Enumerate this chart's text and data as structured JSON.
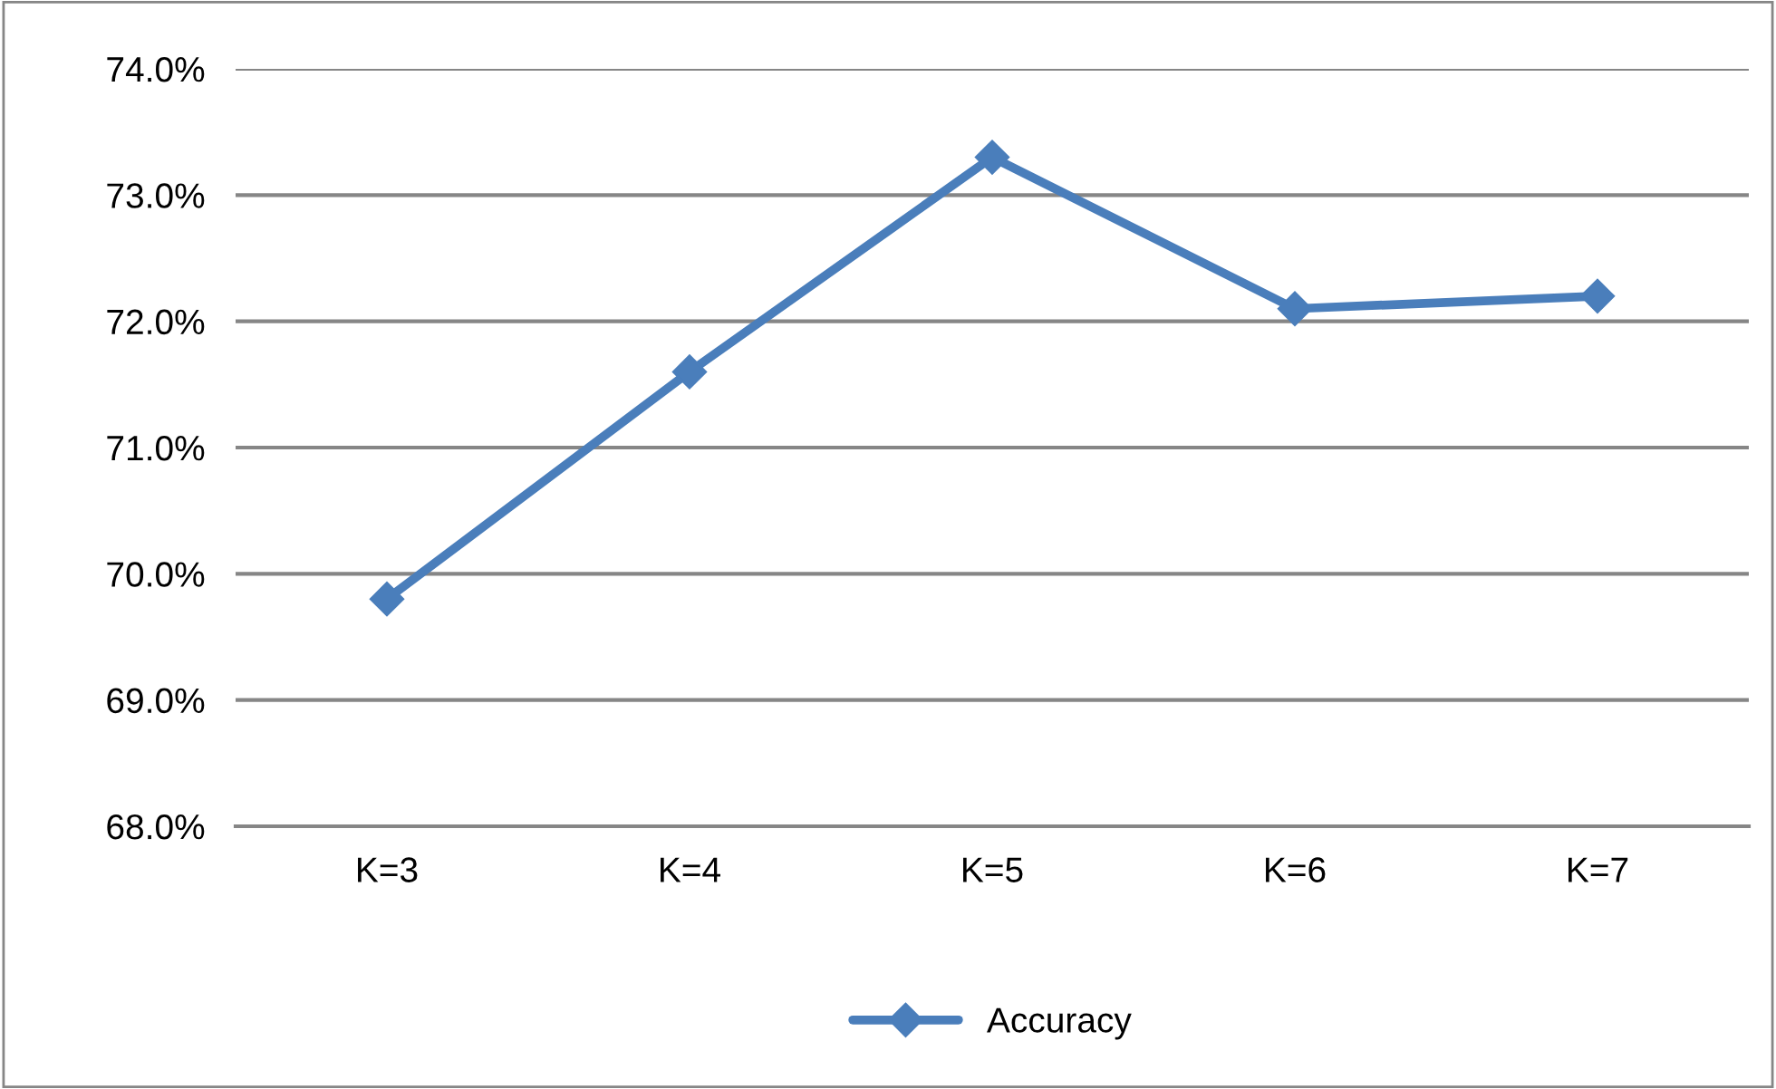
{
  "chart_data": {
    "type": "line",
    "categories": [
      "K=3",
      "K=4",
      "K=5",
      "K=6",
      "K=7"
    ],
    "series": [
      {
        "name": "Accuracy",
        "color": "#4a7ebb",
        "values": [
          69.8,
          71.6,
          73.3,
          72.1,
          72.2
        ]
      }
    ],
    "ylim": [
      68,
      74
    ],
    "yticks": [
      {
        "value": 68,
        "label": "68.0%"
      },
      {
        "value": 69,
        "label": "69.0%"
      },
      {
        "value": 70,
        "label": "70.0%"
      },
      {
        "value": 71,
        "label": "71.0%"
      },
      {
        "value": 72,
        "label": "72.0%"
      },
      {
        "value": 73,
        "label": "73.0%"
      },
      {
        "value": 74,
        "label": "74.0%"
      }
    ],
    "grid": "y",
    "legend": "bottom",
    "marker": "diamond",
    "line_style": "solid"
  }
}
